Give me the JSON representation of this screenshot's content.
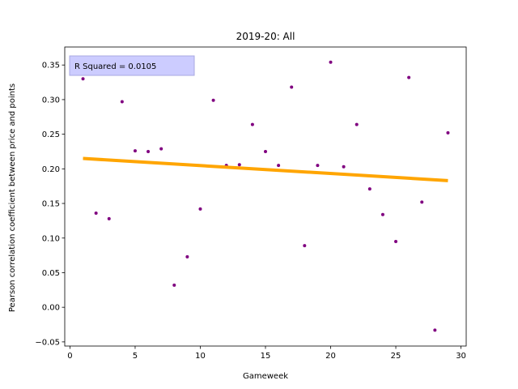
{
  "chart_data": {
    "type": "scatter",
    "title": "2019-20: All",
    "xlabel": "Gameweek",
    "ylabel": "Pearson correlation coefficient between price and points",
    "xlim": [
      -0.4,
      30.4
    ],
    "ylim": [
      -0.056,
      0.376
    ],
    "xticks": [
      0,
      5,
      10,
      15,
      20,
      25,
      30
    ],
    "yticks": [
      -0.05,
      0.0,
      0.05,
      0.1,
      0.15,
      0.2,
      0.25,
      0.3,
      0.35
    ],
    "ytick_labels": [
      "−0.05",
      "0.00",
      "0.05",
      "0.10",
      "0.15",
      "0.20",
      "0.25",
      "0.30",
      "0.35"
    ],
    "grid": false,
    "annotation": "R Squared = 0.0105",
    "colors": {
      "points": "#800080",
      "trend": "#ffa500",
      "annotation_bg": "#ccccff",
      "annotation_border": "#a8a8e0"
    },
    "points": {
      "x": [
        1,
        2,
        3,
        4,
        5,
        6,
        7,
        8,
        9,
        10,
        11,
        12,
        13,
        14,
        15,
        16,
        17,
        18,
        19,
        20,
        21,
        22,
        23,
        24,
        25,
        26,
        27,
        28,
        29
      ],
      "y": [
        0.33,
        0.136,
        0.128,
        0.297,
        0.226,
        0.225,
        0.229,
        0.032,
        0.073,
        0.142,
        0.299,
        0.205,
        0.206,
        0.264,
        0.225,
        0.205,
        0.318,
        0.089,
        0.205,
        0.354,
        0.203,
        0.264,
        0.171,
        0.134,
        0.095,
        0.332,
        0.152,
        -0.033,
        0.252
      ]
    },
    "trend": {
      "x": [
        1,
        29
      ],
      "y": [
        0.215,
        0.183
      ]
    }
  }
}
